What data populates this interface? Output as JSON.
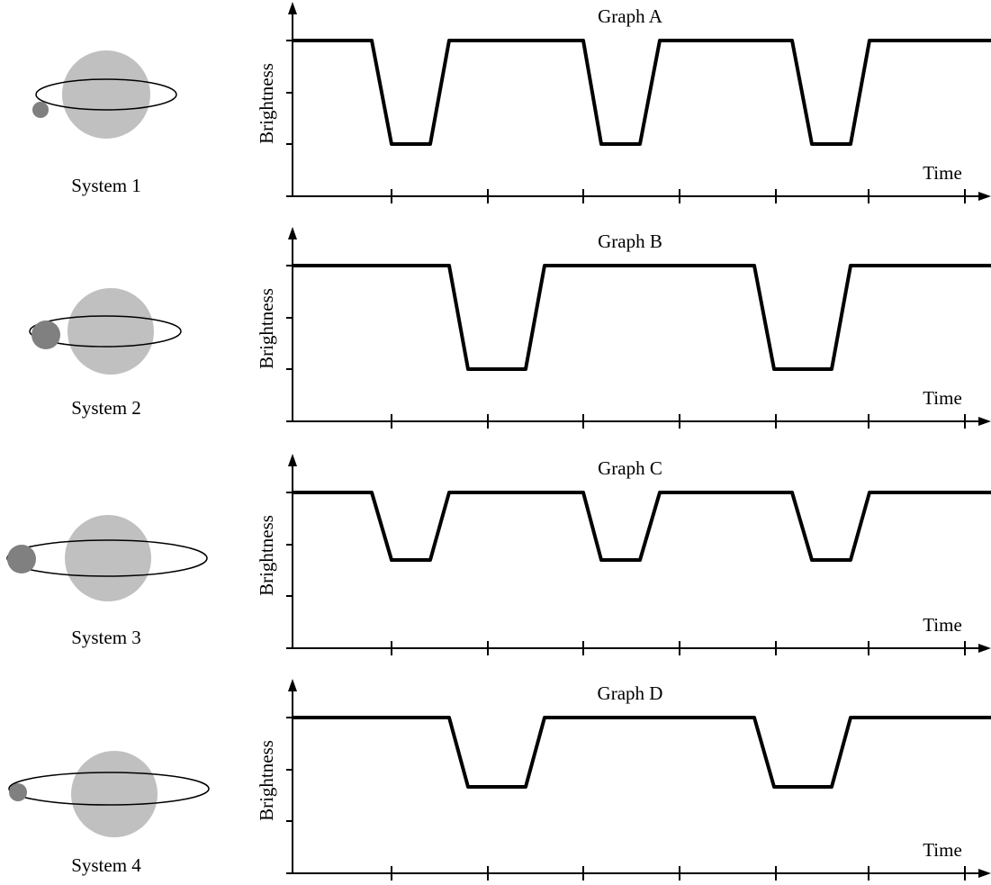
{
  "systems": [
    {
      "label": "System 1"
    },
    {
      "label": "System 2"
    },
    {
      "label": "System 3"
    },
    {
      "label": "System 4"
    }
  ],
  "graphs": [
    {
      "title": "Graph A",
      "y_label": "Brightness",
      "x_label": "Time"
    },
    {
      "title": "Graph B",
      "y_label": "Brightness",
      "x_label": "Time"
    },
    {
      "title": "Graph C",
      "y_label": "Brightness",
      "x_label": "Time"
    },
    {
      "title": "Graph D",
      "y_label": "Brightness",
      "x_label": "Time"
    }
  ]
}
